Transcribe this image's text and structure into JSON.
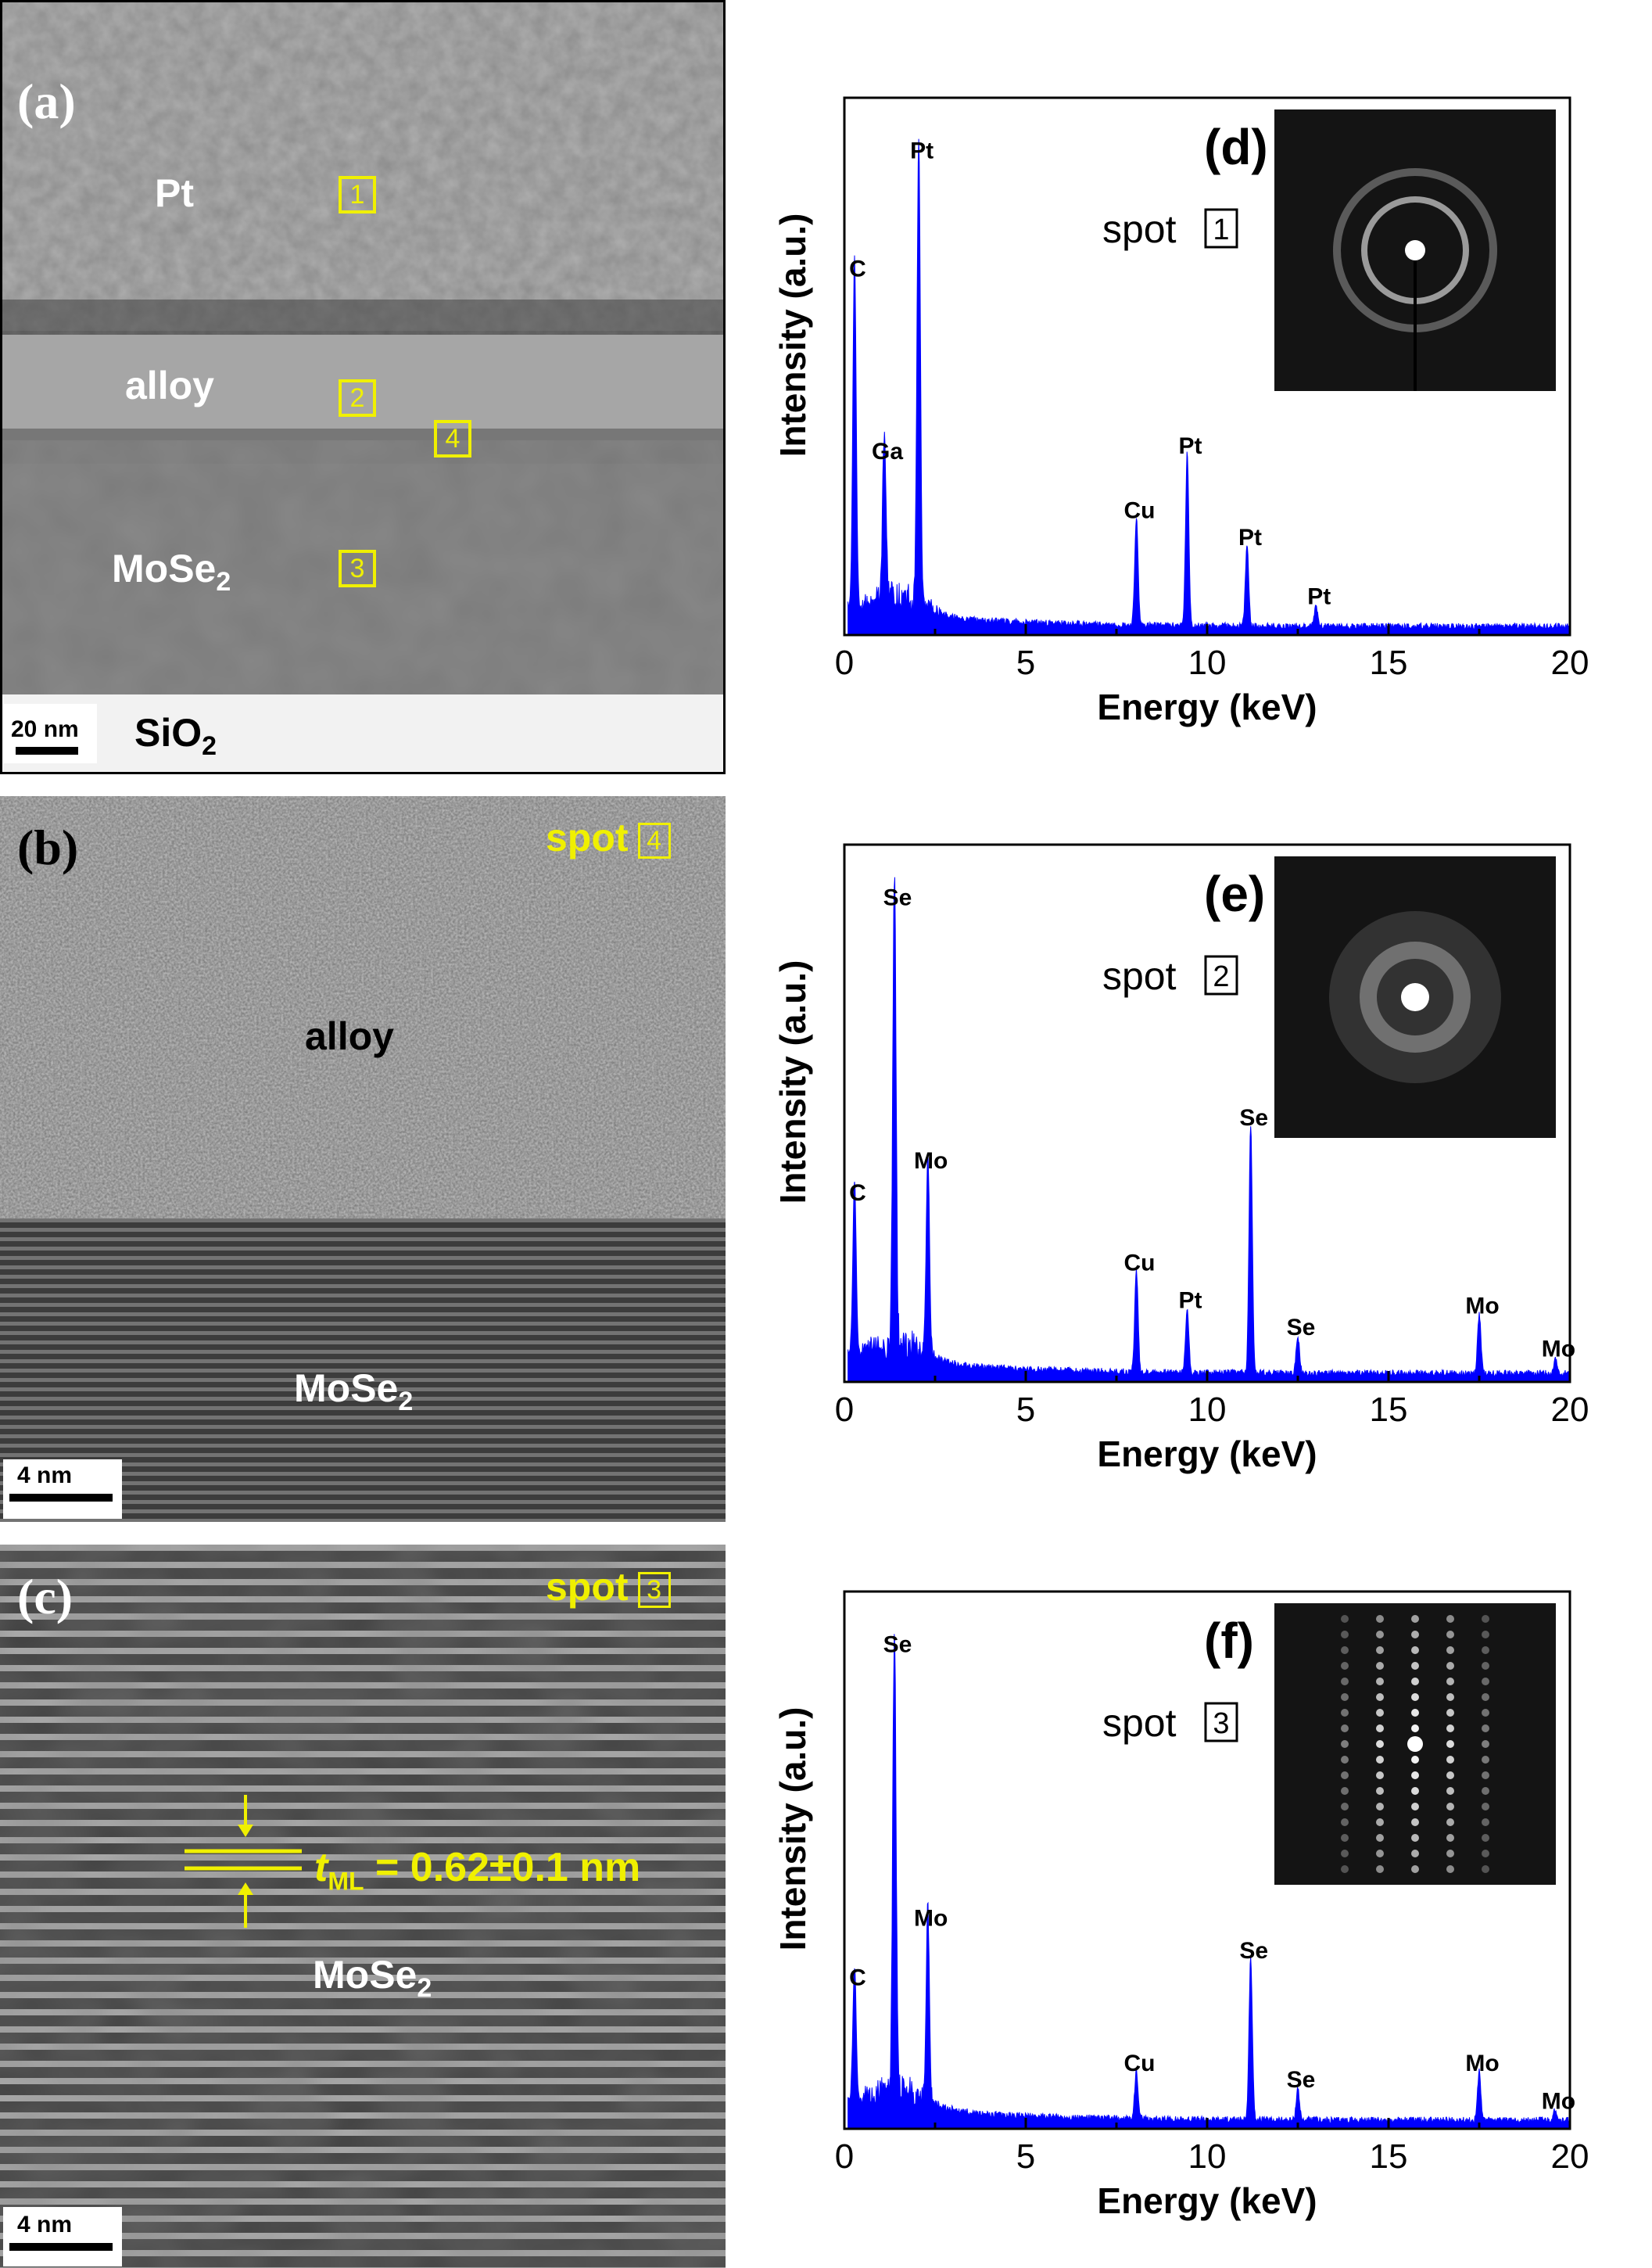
{
  "panels": {
    "a": {
      "label": "(a)",
      "layers": {
        "pt": "Pt",
        "alloy": "alloy",
        "mose2_main": "MoSe",
        "mose2_sub": "2",
        "sio2_main": "SiO",
        "sio2_sub": "2"
      },
      "spots": [
        "1",
        "2",
        "4",
        "3"
      ],
      "scale": "20 nm"
    },
    "b": {
      "label": "(b)",
      "spot_label": "spot",
      "spot_num": "4",
      "alloy": "alloy",
      "mose2_main": "MoSe",
      "mose2_sub": "2",
      "scale": "4 nm"
    },
    "c": {
      "label": "(c)",
      "spot_label": "spot",
      "spot_num": "3",
      "t_main": "t",
      "t_sub": "ML",
      "t_value": " = 0.62±0.1 nm",
      "mose2_main": "MoSe",
      "mose2_sub": "2",
      "scale": "4 nm"
    },
    "d": {
      "label": "(d)",
      "spot_label": "spot",
      "spot_num": "1"
    },
    "e": {
      "label": "(e)",
      "spot_label": "spot",
      "spot_num": "2"
    },
    "f": {
      "label": "(f)",
      "spot_label": "spot",
      "spot_num": "3"
    }
  },
  "colors": {
    "spectrum": "#0000ff",
    "annotation": "#f0f000"
  },
  "chart_data": [
    {
      "panel": "d",
      "type": "area",
      "xlabel": "Energy (keV)",
      "ylabel": "Intensity (a.u.)",
      "xlim": [
        0,
        20
      ],
      "ylim": [
        0,
        1
      ],
      "xticks": [
        0,
        5,
        10,
        15,
        20
      ],
      "peaks": [
        {
          "label": "C",
          "x": 0.28,
          "y": 0.65
        },
        {
          "label": "Ga",
          "x": 1.1,
          "y": 0.31
        },
        {
          "label": "Pt",
          "x": 2.05,
          "y": 0.87
        },
        {
          "label": "Cu",
          "x": 8.05,
          "y": 0.2
        },
        {
          "label": "Pt",
          "x": 9.45,
          "y": 0.32
        },
        {
          "label": "Pt",
          "x": 11.1,
          "y": 0.15
        },
        {
          "label": "Pt",
          "x": 13.0,
          "y": 0.04
        }
      ]
    },
    {
      "panel": "e",
      "type": "area",
      "xlabel": "Energy (keV)",
      "ylabel": "Intensity (a.u.)",
      "xlim": [
        0,
        20
      ],
      "ylim": [
        0,
        1
      ],
      "xticks": [
        0,
        5,
        10,
        15,
        20
      ],
      "peaks": [
        {
          "label": "C",
          "x": 0.28,
          "y": 0.32
        },
        {
          "label": "Se",
          "x": 1.38,
          "y": 0.87
        },
        {
          "label": "Mo",
          "x": 2.3,
          "y": 0.38
        },
        {
          "label": "Cu",
          "x": 8.05,
          "y": 0.19
        },
        {
          "label": "Pt",
          "x": 9.45,
          "y": 0.12
        },
        {
          "label": "Se",
          "x": 11.2,
          "y": 0.46
        },
        {
          "label": "Se",
          "x": 12.5,
          "y": 0.07
        },
        {
          "label": "Mo",
          "x": 17.5,
          "y": 0.11
        },
        {
          "label": "Mo",
          "x": 19.6,
          "y": 0.03
        }
      ]
    },
    {
      "panel": "f",
      "type": "area",
      "xlabel": "Energy (keV)",
      "ylabel": "Intensity (a.u.)",
      "xlim": [
        0,
        20
      ],
      "ylim": [
        0,
        1
      ],
      "xticks": [
        0,
        5,
        10,
        15,
        20
      ],
      "peaks": [
        {
          "label": "C",
          "x": 0.28,
          "y": 0.25
        },
        {
          "label": "Se",
          "x": 1.38,
          "y": 0.87
        },
        {
          "label": "Mo",
          "x": 2.3,
          "y": 0.36
        },
        {
          "label": "Cu",
          "x": 8.05,
          "y": 0.09
        },
        {
          "label": "Se",
          "x": 11.2,
          "y": 0.3
        },
        {
          "label": "Se",
          "x": 12.5,
          "y": 0.06
        },
        {
          "label": "Mo",
          "x": 17.5,
          "y": 0.09
        },
        {
          "label": "Mo",
          "x": 19.6,
          "y": 0.02
        }
      ]
    }
  ]
}
